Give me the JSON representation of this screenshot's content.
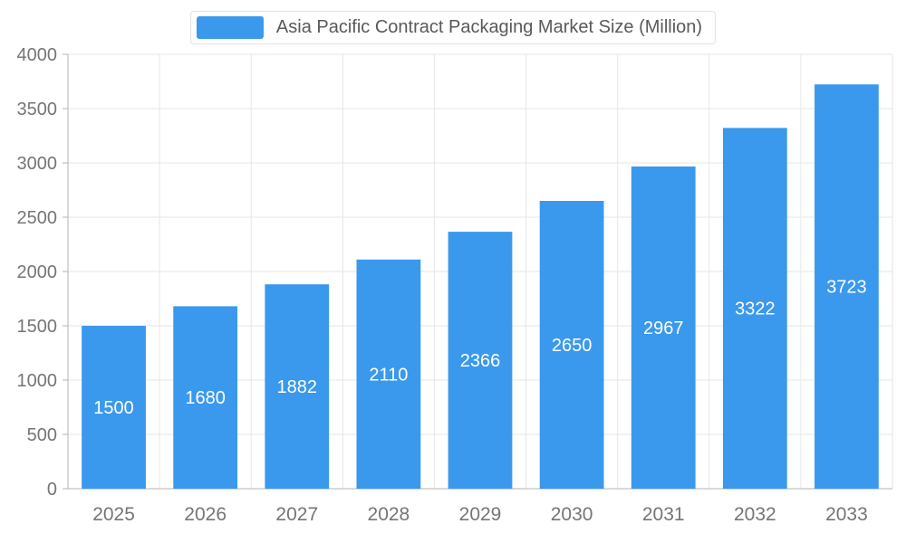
{
  "legend": {
    "label": "Asia Pacific Contract Packaging Market Size (Million)"
  },
  "chart_data": {
    "type": "bar",
    "title": "Asia Pacific Contract Packaging Market Size (Million)",
    "categories": [
      "2025",
      "2026",
      "2027",
      "2028",
      "2029",
      "2030",
      "2031",
      "2032",
      "2033"
    ],
    "values": [
      1500,
      1680,
      1882,
      2110,
      2366,
      2650,
      2967,
      3322,
      3723
    ],
    "xlabel": "",
    "ylabel": "",
    "ylim": [
      0,
      4000
    ],
    "ytick_step": 500,
    "grid": true,
    "legend_position": "top",
    "colors": {
      "bar": "#3A99EC",
      "bar_label": "#ffffff",
      "axis_text": "#757575",
      "grid_line": "#e6e6e6",
      "axis_line": "#b3b3b3"
    }
  }
}
